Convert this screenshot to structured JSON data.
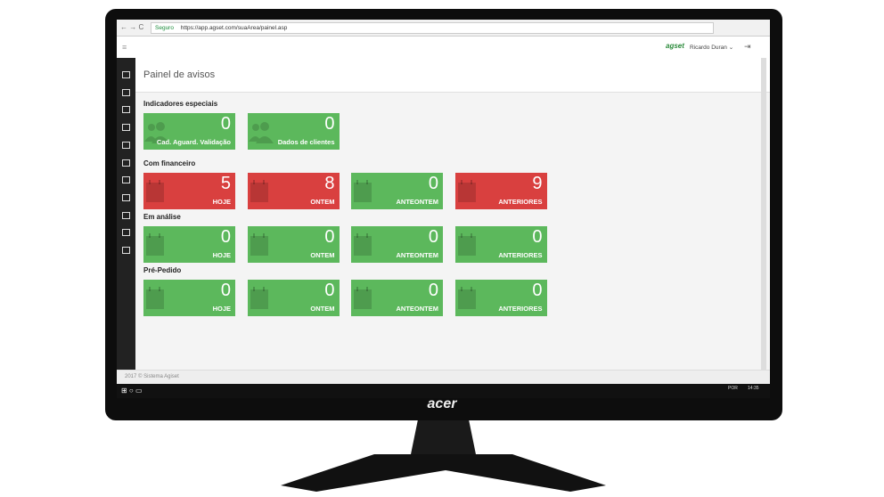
{
  "browser": {
    "security": "Seguro",
    "url": "https://app.agset.com/suaArea/painel.asp"
  },
  "header": {
    "brand": "agset",
    "user": "Ricardo Duran"
  },
  "page": {
    "title": "Painel de avisos"
  },
  "sections": [
    {
      "title": "Indicadores especiais",
      "tiles": [
        {
          "count": 0,
          "label": "Cad. Aguard. Validação",
          "color": "#5cb85c"
        },
        {
          "count": 0,
          "label": "Dados de clientes",
          "color": "#5cb85c"
        }
      ]
    },
    {
      "title": "Com financeiro",
      "tiles": [
        {
          "count": 5,
          "label": "HOJE",
          "color": "#d9403f"
        },
        {
          "count": 8,
          "label": "ONTEM",
          "color": "#d9403f"
        },
        {
          "count": 0,
          "label": "ANTEONTEM",
          "color": "#5cb85c"
        },
        {
          "count": 9,
          "label": "ANTERIORES",
          "color": "#d9403f"
        }
      ]
    },
    {
      "title": "Em análise",
      "tiles": [
        {
          "count": 0,
          "label": "HOJE",
          "color": "#5cb85c"
        },
        {
          "count": 0,
          "label": "ONTEM",
          "color": "#5cb85c"
        },
        {
          "count": 0,
          "label": "ANTEONTEM",
          "color": "#5cb85c"
        },
        {
          "count": 0,
          "label": "ANTERIORES",
          "color": "#5cb85c"
        }
      ]
    },
    {
      "title": "Pré-Pedido",
      "tiles": [
        {
          "count": 0,
          "label": "HOJE",
          "color": "#5cb85c"
        },
        {
          "count": 0,
          "label": "ONTEM",
          "color": "#5cb85c"
        },
        {
          "count": 0,
          "label": "ANTEONTEM",
          "color": "#5cb85c"
        },
        {
          "count": 0,
          "label": "ANTERIORES",
          "color": "#5cb85c"
        }
      ]
    }
  ],
  "footer": "2017 © Sistema Agiset",
  "taskbar": {
    "language": "POR",
    "time": "14:35"
  },
  "monitor": {
    "brand": "acer"
  }
}
